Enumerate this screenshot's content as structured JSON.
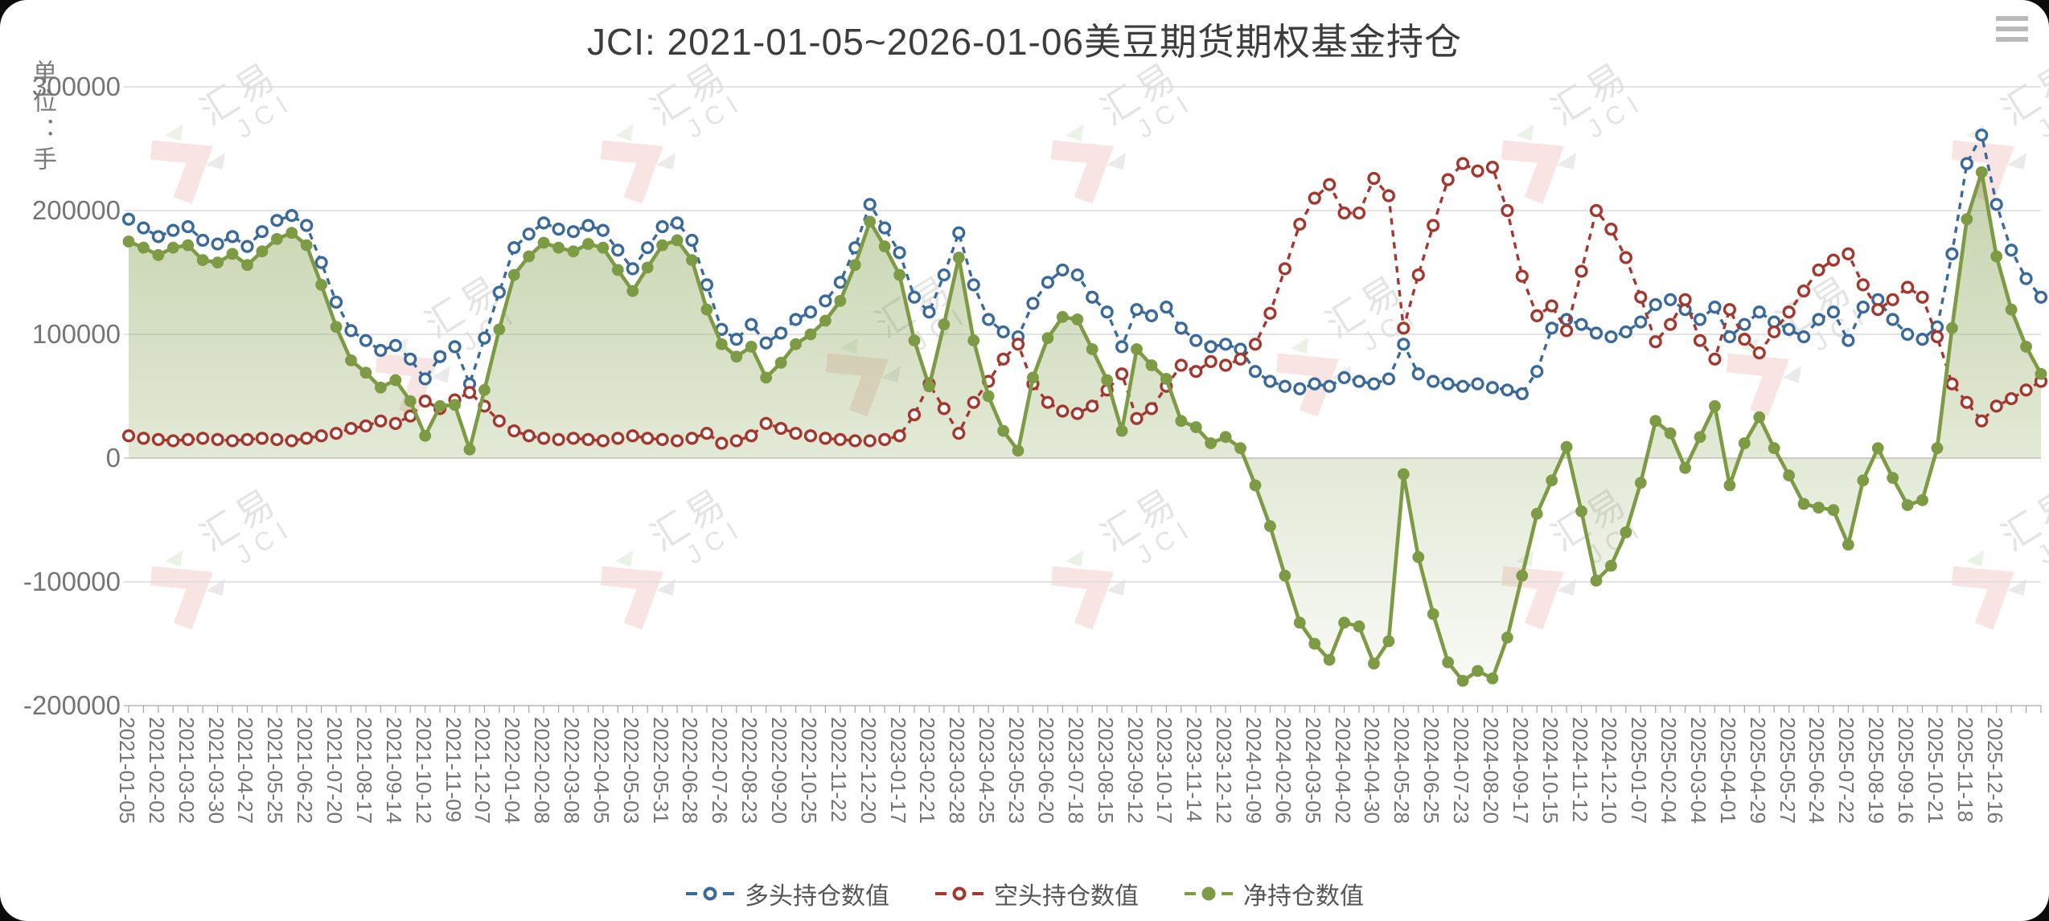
{
  "title": "JCI: 2021-01-05~2026-01-06美豆期货期权基金持仓",
  "menu": {
    "icon": "hamburger-menu-icon"
  },
  "y_axis": {
    "unit_label": "单位：手",
    "ticks": [
      "300000",
      "200000",
      "100000",
      "0",
      "-100000",
      "-200000"
    ]
  },
  "watermark": {
    "cn": "汇易",
    "en": "JCI"
  },
  "legend": [
    {
      "label": "多头持仓数值",
      "color": "#3a699b",
      "marker": "hollow-circle-dash"
    },
    {
      "label": "空头持仓数值",
      "color": "#a2382e",
      "marker": "hollow-circle-dash"
    },
    {
      "label": "净持仓数值",
      "color": "#7d9b44",
      "marker": "filled-circle-dash"
    }
  ],
  "chart_data": {
    "type": "line",
    "title": "JCI: 2021-01-05~2026-01-06美豆期货期权基金持仓",
    "ylabel": "单位：手",
    "ylim": [
      -200000,
      300000
    ],
    "grid": true,
    "legend_position": "bottom",
    "points_per_label": 2,
    "x_tick_labels": [
      "2021-01-05",
      "2021-02-02",
      "2021-03-02",
      "2021-03-30",
      "2021-04-27",
      "2021-05-25",
      "2021-06-22",
      "2021-07-20",
      "2021-08-17",
      "2021-09-14",
      "2021-10-12",
      "2021-11-09",
      "2021-12-07",
      "2022-01-04",
      "2022-02-08",
      "2022-03-08",
      "2022-04-05",
      "2022-05-03",
      "2022-05-31",
      "2022-06-28",
      "2022-07-26",
      "2022-08-23",
      "2022-09-20",
      "2022-10-25",
      "2022-11-22",
      "2022-12-20",
      "2023-01-17",
      "2023-02-21",
      "2023-03-28",
      "2023-04-25",
      "2023-05-23",
      "2023-06-20",
      "2023-07-18",
      "2023-08-15",
      "2023-09-12",
      "2023-10-17",
      "2023-11-14",
      "2023-12-12",
      "2024-01-09",
      "2024-02-06",
      "2024-03-05",
      "2024-04-02",
      "2024-04-30",
      "2024-05-28",
      "2024-06-25",
      "2024-07-23",
      "2024-08-20",
      "2024-09-17",
      "2024-10-15",
      "2024-11-12",
      "2024-12-10",
      "2025-01-07",
      "2025-02-04",
      "2025-03-04",
      "2025-04-01",
      "2025-04-29",
      "2025-05-27",
      "2025-06-24",
      "2025-07-22",
      "2025-08-19",
      "2025-09-16",
      "2025-10-21",
      "2025-11-18",
      "2025-12-16"
    ],
    "series": [
      {
        "name": "多头持仓数值",
        "color": "#3a699b",
        "style": "dashed-line-hollow-circles",
        "values": [
          193000,
          186000,
          179000,
          184000,
          187000,
          176000,
          173000,
          179000,
          171000,
          183000,
          192000,
          196000,
          188000,
          158000,
          126000,
          103000,
          95000,
          87000,
          91000,
          80000,
          64000,
          82000,
          90000,
          60000,
          97000,
          134000,
          170000,
          181000,
          190000,
          185000,
          183000,
          188000,
          184000,
          168000,
          153000,
          170000,
          187000,
          190000,
          176000,
          140000,
          104000,
          96000,
          108000,
          93000,
          101000,
          112000,
          118000,
          127000,
          142000,
          170000,
          205000,
          186000,
          166000,
          130000,
          118000,
          148000,
          182000,
          140000,
          112000,
          102000,
          98000,
          125000,
          142000,
          152000,
          148000,
          130000,
          118000,
          90000,
          120000,
          115000,
          122000,
          105000,
          95000,
          90000,
          92000,
          88000,
          70000,
          62000,
          58000,
          56000,
          60000,
          58000,
          65000,
          62000,
          60000,
          64000,
          92000,
          68000,
          62000,
          60000,
          58000,
          60000,
          57000,
          55000,
          52000,
          70000,
          105000,
          112000,
          108000,
          101000,
          98000,
          102000,
          110000,
          124000,
          128000,
          120000,
          112000,
          122000,
          98000,
          108000,
          118000,
          110000,
          104000,
          98000,
          112000,
          118000,
          95000,
          122000,
          128000,
          112000,
          100000,
          96000,
          106000,
          165000,
          238000,
          261000,
          205000,
          168000,
          145000,
          130000
        ]
      },
      {
        "name": "空头持仓数值",
        "color": "#a2382e",
        "style": "dashed-line-hollow-circles",
        "values": [
          18000,
          16000,
          15000,
          14000,
          15000,
          16000,
          15000,
          14000,
          15000,
          16000,
          15000,
          14000,
          16000,
          18000,
          20000,
          24000,
          26000,
          30000,
          28000,
          34000,
          46000,
          40000,
          47000,
          53000,
          42000,
          30000,
          22000,
          18000,
          16000,
          15000,
          16000,
          15000,
          14000,
          16000,
          18000,
          16000,
          15000,
          14000,
          16000,
          20000,
          12000,
          14000,
          18000,
          28000,
          24000,
          20000,
          18000,
          16000,
          15000,
          14000,
          14000,
          15000,
          18000,
          35000,
          60000,
          40000,
          20000,
          45000,
          62000,
          80000,
          92000,
          60000,
          45000,
          38000,
          36000,
          42000,
          55000,
          68000,
          32000,
          40000,
          58000,
          75000,
          70000,
          78000,
          75000,
          80000,
          92000,
          117000,
          153000,
          189000,
          210000,
          221000,
          198000,
          198000,
          226000,
          212000,
          105000,
          148000,
          188000,
          225000,
          238000,
          232000,
          235000,
          200000,
          147000,
          115000,
          123000,
          103000,
          151000,
          200000,
          185000,
          162000,
          130000,
          94000,
          108000,
          128000,
          95000,
          80000,
          120000,
          96000,
          85000,
          102000,
          118000,
          135000,
          152000,
          160000,
          165000,
          140000,
          120000,
          128000,
          138000,
          130000,
          98000,
          60000,
          45000,
          30000,
          42000,
          48000,
          55000,
          62000
        ]
      },
      {
        "name": "净持仓数值",
        "color": "#7d9b44",
        "style": "solid-line-filled-circles-gradient-area",
        "values": [
          175000,
          170000,
          164000,
          170000,
          172000,
          160000,
          158000,
          165000,
          156000,
          167000,
          177000,
          182000,
          172000,
          140000,
          106000,
          79000,
          69000,
          57000,
          63000,
          46000,
          18000,
          42000,
          43000,
          7000,
          55000,
          104000,
          148000,
          163000,
          174000,
          170000,
          167000,
          173000,
          170000,
          152000,
          135000,
          154000,
          172000,
          176000,
          160000,
          120000,
          92000,
          82000,
          90000,
          65000,
          77000,
          92000,
          100000,
          111000,
          127000,
          156000,
          191000,
          171000,
          148000,
          95000,
          58000,
          108000,
          162000,
          95000,
          50000,
          22000,
          6000,
          65000,
          97000,
          114000,
          112000,
          88000,
          63000,
          22000,
          88000,
          75000,
          64000,
          30000,
          25000,
          12000,
          17000,
          8000,
          -22000,
          -55000,
          -95000,
          -133000,
          -150000,
          -163000,
          -133000,
          -136000,
          -166000,
          -148000,
          -13000,
          -80000,
          -126000,
          -165000,
          -180000,
          -172000,
          -178000,
          -145000,
          -95000,
          -45000,
          -18000,
          9000,
          -43000,
          -99000,
          -87000,
          -60000,
          -20000,
          30000,
          20000,
          -8000,
          17000,
          42000,
          -22000,
          12000,
          33000,
          8000,
          -14000,
          -37000,
          -40000,
          -42000,
          -70000,
          -18000,
          8000,
          -16000,
          -38000,
          -34000,
          8000,
          105000,
          193000,
          231000,
          163000,
          120000,
          90000,
          68000
        ]
      }
    ]
  }
}
